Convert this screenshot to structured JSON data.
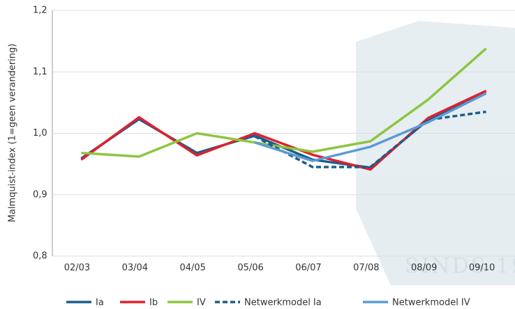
{
  "chart_data": {
    "type": "line",
    "y_label": "Malmquist-index (1=geen verandering)",
    "categories": [
      "02/03",
      "03/04",
      "04/05",
      "05/06",
      "06/07",
      "07/08",
      "08/09",
      "09/10"
    ],
    "series": [
      {
        "name": "Ia",
        "color": "#1b5e8c",
        "dashed": false,
        "values": [
          0.959,
          1.023,
          0.968,
          0.996,
          0.957,
          0.944,
          1.022,
          1.068
        ]
      },
      {
        "name": "Ib",
        "color": "#e0202e",
        "dashed": false,
        "values": [
          0.957,
          1.026,
          0.964,
          1.0,
          0.965,
          0.941,
          1.025,
          1.069
        ]
      },
      {
        "name": "IV",
        "color": "#8cc63f",
        "dashed": false,
        "values": [
          0.968,
          0.962,
          1.0,
          0.985,
          0.97,
          0.987,
          1.055,
          1.138
        ]
      },
      {
        "name": "Netwerkmodel Ia",
        "color": "#1b5e8c",
        "dashed": true,
        "values": [
          null,
          null,
          null,
          0.995,
          0.945,
          0.945,
          1.022,
          1.035
        ]
      },
      {
        "name": "Netwerkmodel IV",
        "color": "#5b9bd5",
        "dashed": false,
        "values": [
          null,
          null,
          null,
          0.985,
          0.955,
          0.978,
          1.018,
          1.065
        ]
      }
    ],
    "ylim": [
      0.8,
      1.2
    ],
    "yticks": [
      {
        "value": 0.8,
        "label": "0,8"
      },
      {
        "value": 0.9,
        "label": "0,9"
      },
      {
        "value": 1.0,
        "label": "1,0"
      },
      {
        "value": 1.1,
        "label": "1,1"
      },
      {
        "value": 1.2,
        "label": "1,2"
      }
    ],
    "grid": true,
    "watermark_text": "SINDS 19"
  }
}
